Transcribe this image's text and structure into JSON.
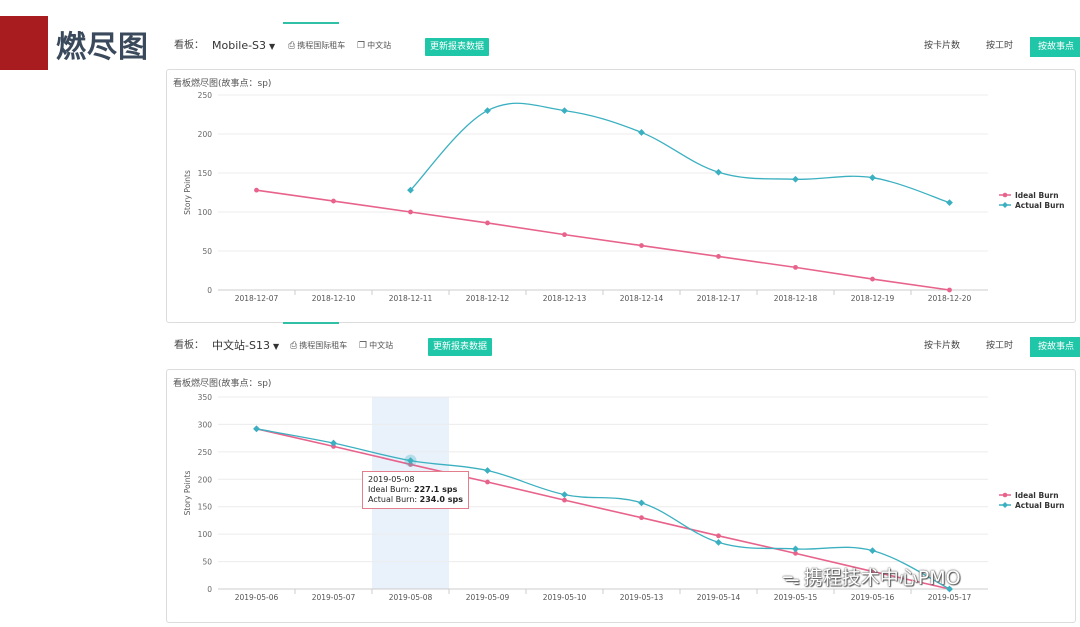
{
  "slide_title": "燃尽图",
  "watermark": "携程技术中心PMO",
  "panels": [
    {
      "toolbar": {
        "board_label": "看板：",
        "board_value": "Mobile-S3",
        "tag1": "携程国际租车",
        "tag2": "中文站",
        "refresh_label": "更新报表数据",
        "by_card": "按卡片数",
        "by_hours": "按工时",
        "by_points": "按故事点"
      },
      "chart_title": "看板燃尽图(故事点：sp)"
    },
    {
      "toolbar": {
        "board_label": "看板：",
        "board_value": "中文站-S13",
        "tag1": "携程国际租车",
        "tag2": "中文站",
        "refresh_label": "更新报表数据",
        "by_card": "按卡片数",
        "by_hours": "按工时",
        "by_points": "按故事点"
      },
      "chart_title": "看板燃尽图(故事点：sp)",
      "tooltip": {
        "date": "2019-05-08",
        "ideal_label": "Ideal Burn: ",
        "ideal_value": "227.1 sps",
        "actual_label": "Actual Burn: ",
        "actual_value": "234.0 sps"
      }
    }
  ],
  "chart_data": [
    {
      "type": "line",
      "title": "",
      "xlabel": "",
      "ylabel": "Story Points",
      "categories": [
        "2018-12-07",
        "2018-12-10",
        "2018-12-11",
        "2018-12-12",
        "2018-12-13",
        "2018-12-14",
        "2018-12-17",
        "2018-12-18",
        "2018-12-19",
        "2018-12-20"
      ],
      "ylim": [
        0,
        250
      ],
      "yticks": [
        0,
        50,
        100,
        150,
        200,
        250
      ],
      "grid": true,
      "legend": "right",
      "series": [
        {
          "name": "Ideal Burn",
          "color": "#e8638c",
          "smooth": false,
          "values": [
            128,
            114,
            100,
            86,
            71,
            57,
            43,
            29,
            14,
            0
          ]
        },
        {
          "name": "Actual Burn",
          "color": "#3bb0c1",
          "smooth": true,
          "values": [
            null,
            null,
            128,
            230,
            230,
            202,
            151,
            142,
            144,
            112
          ]
        }
      ]
    },
    {
      "type": "line",
      "title": "",
      "xlabel": "",
      "ylabel": "Story Points",
      "categories": [
        "2019-05-06",
        "2019-05-07",
        "2019-05-08",
        "2019-05-09",
        "2019-05-10",
        "2019-05-13",
        "2019-05-14",
        "2019-05-15",
        "2019-05-16",
        "2019-05-17"
      ],
      "ylim": [
        0,
        350
      ],
      "yticks": [
        0,
        50,
        100,
        150,
        200,
        250,
        300,
        350
      ],
      "grid": true,
      "legend": "right",
      "highlight_index": 2,
      "series": [
        {
          "name": "Ideal Burn",
          "color": "#e8638c",
          "smooth": false,
          "values": [
            292,
            260,
            227.1,
            195,
            162,
            130,
            97,
            65,
            32,
            0
          ]
        },
        {
          "name": "Actual Burn",
          "color": "#3bb0c1",
          "smooth": true,
          "values": [
            292,
            266,
            234,
            216,
            172,
            157,
            85,
            73,
            70,
            0
          ]
        }
      ]
    }
  ]
}
